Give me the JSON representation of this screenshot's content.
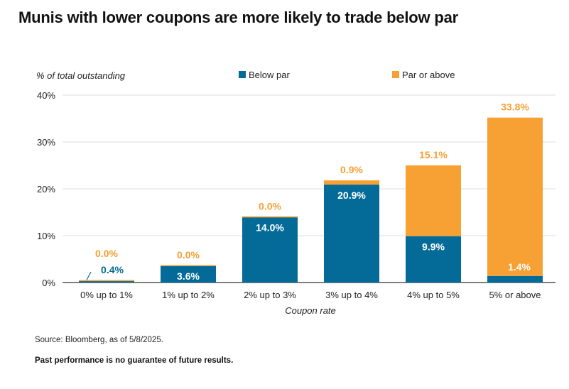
{
  "title": "Munis with lower coupons are more likely to trade below par",
  "source": "Source: Bloomberg, as of 5/8/2025.",
  "disclaimer": "Past performance is no guarantee of future results.",
  "colors": {
    "below": "#046b99",
    "par_above": "#f7a033",
    "grid": "#dddddd",
    "axis": "#333333"
  },
  "chart_data": {
    "type": "bar",
    "stacked": true,
    "title": "",
    "ylabel": "% of total outstanding",
    "xlabel": "Coupon rate",
    "ylim": [
      0,
      40
    ],
    "yticks": [
      0,
      10,
      20,
      30,
      40
    ],
    "ytick_labels": [
      "0%",
      "10%",
      "20%",
      "30%",
      "40%"
    ],
    "grid": true,
    "legend_position": "top",
    "categories": [
      "0% up to 1%",
      "1% up to 2%",
      "2% up to 3%",
      "3% up to 4%",
      "4% up to 5%",
      "5% or above"
    ],
    "series": [
      {
        "name": "Below par",
        "color": "#046b99",
        "values": [
          0.4,
          3.6,
          14.0,
          20.9,
          9.9,
          1.4
        ],
        "labels": [
          "0.4%",
          "3.6%",
          "14.0%",
          "20.9%",
          "9.9%",
          "1.4%"
        ]
      },
      {
        "name": "Par or above",
        "color": "#f7a033",
        "values": [
          0.0,
          0.0,
          0.0,
          0.9,
          15.1,
          33.8
        ],
        "labels": [
          "0.0%",
          "0.0%",
          "0.0%",
          "0.9%",
          "15.1%",
          "33.8%"
        ]
      }
    ]
  }
}
